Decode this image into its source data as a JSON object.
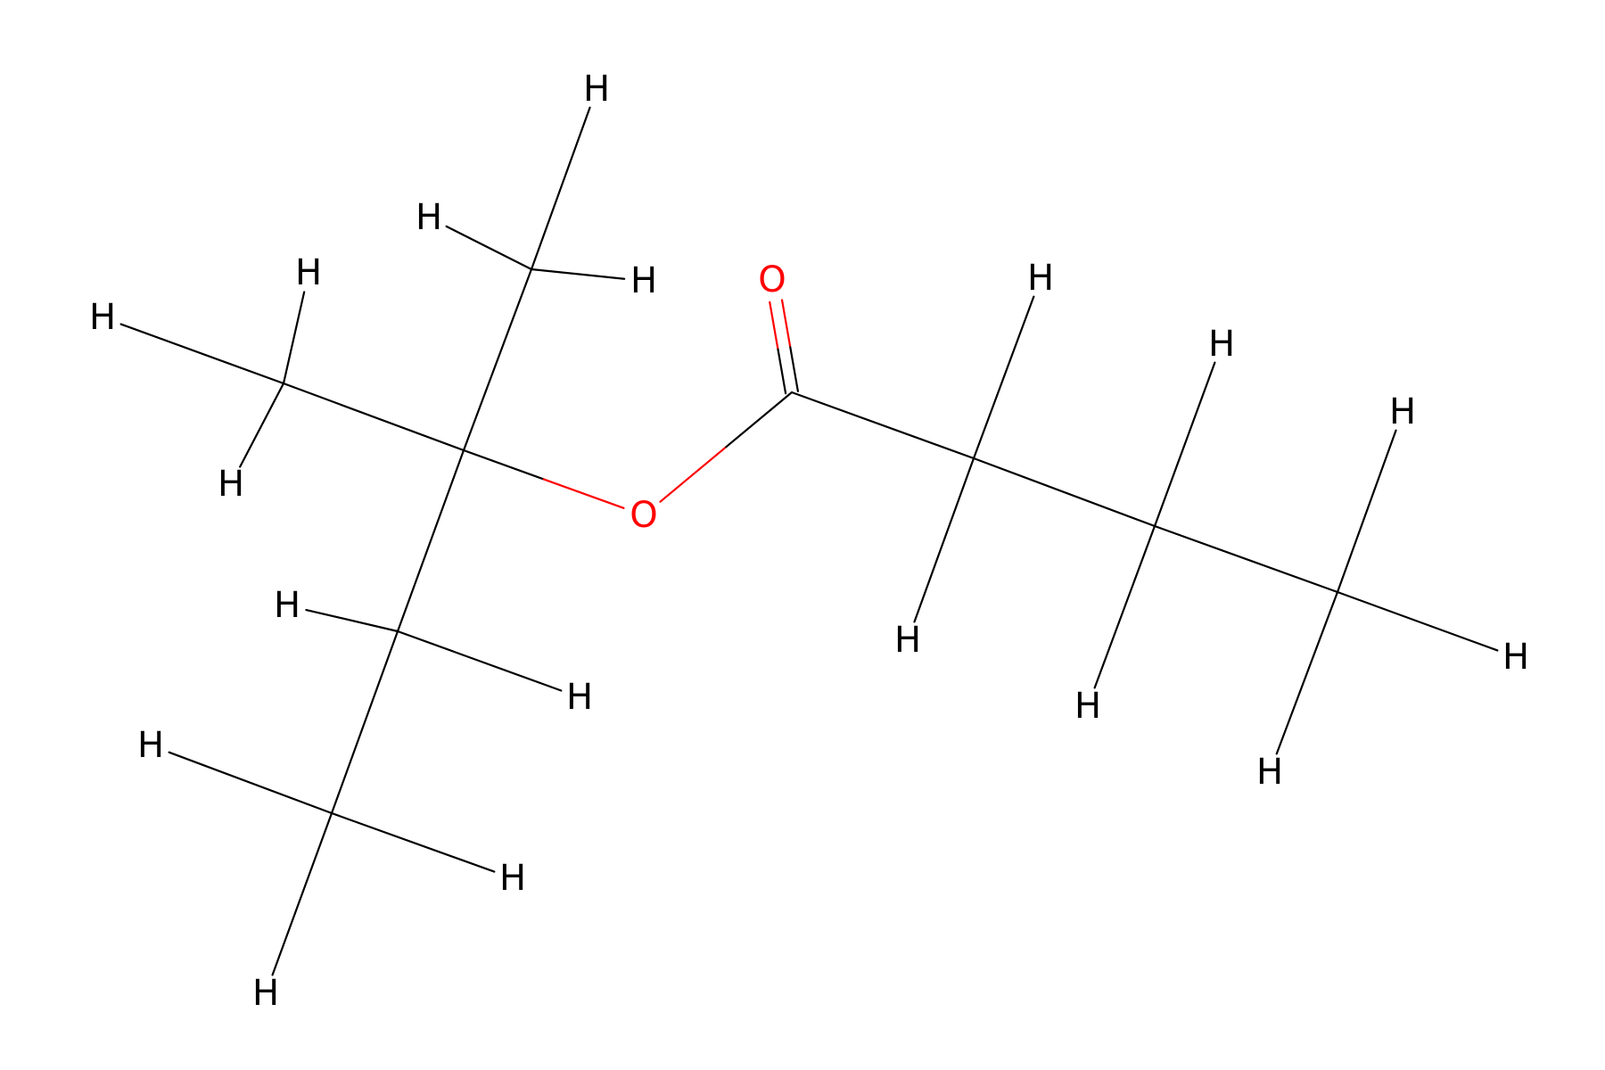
{
  "molecule": {
    "colors": {
      "bond": "#000000",
      "oxygen": "#ff0000",
      "hydrogen": "#000000"
    },
    "atoms": [
      {
        "id": "C_ester",
        "element": "C",
        "label": ""
      },
      {
        "id": "O_carbonyl",
        "element": "O",
        "label": "O"
      },
      {
        "id": "O_ether",
        "element": "O",
        "label": "O"
      },
      {
        "id": "C_quat",
        "element": "C",
        "label": ""
      },
      {
        "id": "C_methyl_top",
        "element": "C",
        "label": ""
      },
      {
        "id": "C_methyl_left",
        "element": "C",
        "label": ""
      },
      {
        "id": "C_ethyl_ch2",
        "element": "C",
        "label": ""
      },
      {
        "id": "C_ethyl_ch3",
        "element": "C",
        "label": ""
      },
      {
        "id": "C_alpha",
        "element": "C",
        "label": ""
      },
      {
        "id": "C_beta",
        "element": "C",
        "label": ""
      },
      {
        "id": "C_gamma",
        "element": "C",
        "label": ""
      },
      {
        "id": "H1",
        "element": "H",
        "label": "H"
      },
      {
        "id": "H2",
        "element": "H",
        "label": "H"
      },
      {
        "id": "H3",
        "element": "H",
        "label": "H"
      },
      {
        "id": "H4",
        "element": "H",
        "label": "H"
      },
      {
        "id": "H5",
        "element": "H",
        "label": "H"
      },
      {
        "id": "H6",
        "element": "H",
        "label": "H"
      },
      {
        "id": "H7",
        "element": "H",
        "label": "H"
      },
      {
        "id": "H8",
        "element": "H",
        "label": "H"
      },
      {
        "id": "H9",
        "element": "H",
        "label": "H"
      },
      {
        "id": "H10",
        "element": "H",
        "label": "H"
      },
      {
        "id": "H11",
        "element": "H",
        "label": "H"
      },
      {
        "id": "H12",
        "element": "H",
        "label": "H"
      },
      {
        "id": "H13",
        "element": "H",
        "label": "H"
      },
      {
        "id": "H14",
        "element": "H",
        "label": "H"
      },
      {
        "id": "H15",
        "element": "H",
        "label": "H"
      },
      {
        "id": "H16",
        "element": "H",
        "label": "H"
      },
      {
        "id": "H17",
        "element": "H",
        "label": "H"
      },
      {
        "id": "H18",
        "element": "H",
        "label": "H"
      }
    ],
    "bonds": [
      {
        "a": "C_quat",
        "b": "C_methyl_top",
        "order": 1
      },
      {
        "a": "C_quat",
        "b": "C_methyl_left",
        "order": 1
      },
      {
        "a": "C_quat",
        "b": "C_ethyl_ch2",
        "order": 1
      },
      {
        "a": "C_ethyl_ch2",
        "b": "C_ethyl_ch3",
        "order": 1
      },
      {
        "a": "C_quat",
        "b": "O_ether",
        "order": 1
      },
      {
        "a": "O_ether",
        "b": "C_ester",
        "order": 1
      },
      {
        "a": "C_ester",
        "b": "O_carbonyl",
        "order": 2
      },
      {
        "a": "C_ester",
        "b": "C_alpha",
        "order": 1
      },
      {
        "a": "C_alpha",
        "b": "C_beta",
        "order": 1
      },
      {
        "a": "C_beta",
        "b": "C_gamma",
        "order": 1
      },
      {
        "a": "C_methyl_top",
        "b": "H1",
        "order": 1
      },
      {
        "a": "C_methyl_top",
        "b": "H2",
        "order": 1
      },
      {
        "a": "C_methyl_top",
        "b": "H3",
        "order": 1
      },
      {
        "a": "C_methyl_left",
        "b": "H4",
        "order": 1
      },
      {
        "a": "C_methyl_left",
        "b": "H5",
        "order": 1
      },
      {
        "a": "C_methyl_left",
        "b": "H6",
        "order": 1
      },
      {
        "a": "C_ethyl_ch2",
        "b": "H7",
        "order": 1
      },
      {
        "a": "C_ethyl_ch2",
        "b": "H8",
        "order": 1
      },
      {
        "a": "C_ethyl_ch3",
        "b": "H9",
        "order": 1
      },
      {
        "a": "C_ethyl_ch3",
        "b": "H10",
        "order": 1
      },
      {
        "a": "C_ethyl_ch3",
        "b": "H11",
        "order": 1
      },
      {
        "a": "C_alpha",
        "b": "H12",
        "order": 1
      },
      {
        "a": "C_alpha",
        "b": "H13",
        "order": 1
      },
      {
        "a": "C_beta",
        "b": "H14",
        "order": 1
      },
      {
        "a": "C_beta",
        "b": "H15",
        "order": 1
      },
      {
        "a": "C_gamma",
        "b": "H16",
        "order": 1
      },
      {
        "a": "C_gamma",
        "b": "H17",
        "order": 1
      },
      {
        "a": "C_gamma",
        "b": "H18",
        "order": 1
      }
    ]
  }
}
